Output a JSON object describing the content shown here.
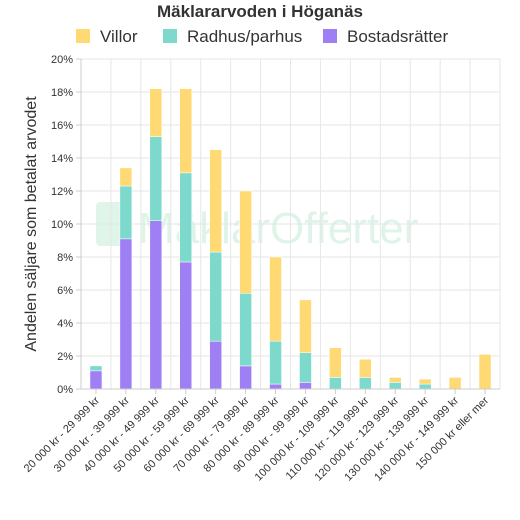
{
  "chart_data": {
    "type": "bar",
    "stacked": true,
    "title": "Mäklararvoden i Höganäs",
    "ylabel": "Andelen säljare som betalat arvodet",
    "xlabel": "",
    "ylim": [
      0,
      20
    ],
    "yticks": [
      "0%",
      "2%",
      "4%",
      "6%",
      "8%",
      "10%",
      "12%",
      "14%",
      "16%",
      "18%",
      "20%"
    ],
    "grid": true,
    "legend_position": "top",
    "categories": [
      "20 000 kr - 29 999 kr",
      "30 000 kr - 39 999 kr",
      "40 000 kr - 49 999 kr",
      "50 000 kr - 59 999 kr",
      "60 000 kr - 69 999 kr",
      "70 000 kr - 79 999 kr",
      "80 000 kr - 89 999 kr",
      "90 000 kr - 99 999 kr",
      "100 000 kr - 109 999 kr",
      "110 000 kr - 119 999 kr",
      "120 000 kr - 129 999 kr",
      "130 000 kr - 139 999 kr",
      "140 000 kr - 149 999 kr",
      "150 000 kr eller mer"
    ],
    "series": [
      {
        "name": "Villor",
        "color": "#ffd973",
        "values": [
          0,
          1.1,
          2.9,
          5.1,
          6.2,
          6.2,
          5.1,
          3.2,
          1.8,
          1.1,
          0.3,
          0.3,
          0.7,
          2.1
        ]
      },
      {
        "name": "Radhus/parhus",
        "color": "#7dd9cc",
        "values": [
          0.3,
          3.2,
          5.1,
          5.4,
          5.4,
          4.4,
          2.6,
          1.8,
          0.7,
          0.7,
          0.4,
          0.3,
          0,
          0
        ]
      },
      {
        "name": "Bostadsrätter",
        "color": "#9f80f4",
        "values": [
          1.1,
          9.1,
          10.2,
          7.7,
          2.9,
          1.4,
          0.3,
          0.4,
          0,
          0,
          0,
          0,
          0,
          0
        ]
      }
    ],
    "stack_order": [
      "Bostadsrätter",
      "Radhus/parhus",
      "Villor"
    ]
  },
  "watermark": "MäklarOfferter"
}
